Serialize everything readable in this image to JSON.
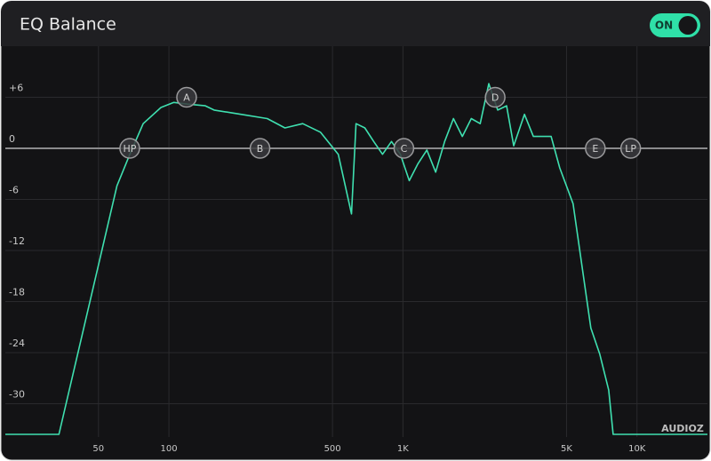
{
  "header": {
    "title": "EQ Balance",
    "toggle": "ON"
  },
  "watermark": "AUDIOZ",
  "chart_data": {
    "type": "line",
    "x_scale": "log",
    "xlim": [
      20,
      20000
    ],
    "ylim": [
      -36,
      12
    ],
    "xticks": [
      50,
      100,
      500,
      {
        "value": 1000,
        "label": "1K"
      },
      {
        "value": 5000,
        "label": "5K"
      },
      {
        "value": 10000,
        "label": "10K"
      }
    ],
    "yticks": [
      {
        "value": 6,
        "label": "+6"
      },
      0,
      -6,
      -12,
      -18,
      -24,
      -30
    ],
    "grid": true,
    "series": [
      {
        "color": "#3fe0b0",
        "x": [
          20,
          33.9,
          60,
          68.1,
          77.6,
          92.5,
          105,
          120,
          143,
          156,
          203,
          263,
          313,
          373,
          444,
          529,
          603,
          630,
          687,
          750,
          818,
          893,
          975,
          1064,
          1159,
          1265,
          1380,
          1507,
          1644,
          1794,
          1959,
          2138,
          2328,
          2541,
          2773,
          2972,
          3304,
          3606,
          4295,
          4677,
          5333,
          5821,
          6353,
          6934,
          7568,
          7907,
          20000
        ],
        "values": [
          -33.6,
          -33.6,
          -4.4,
          -0.7,
          2.9,
          4.8,
          5.4,
          5.2,
          5.0,
          4.5,
          4.0,
          3.5,
          2.4,
          2.9,
          1.9,
          -0.7,
          -7.7,
          2.9,
          2.4,
          0.8,
          -0.7,
          0.8,
          -0.7,
          -3.8,
          -1.8,
          -0.2,
          -2.8,
          0.8,
          3.5,
          1.4,
          3.5,
          2.9,
          7.6,
          4.5,
          5.0,
          0.3,
          4.0,
          1.4,
          1.4,
          -2.3,
          -6.5,
          -13.8,
          -21.1,
          -24.2,
          -28.4,
          -33.6,
          -33.6
        ]
      }
    ],
    "bands": [
      {
        "label": "HP",
        "freq": 68,
        "gain": 0
      },
      {
        "label": "A",
        "freq": 119,
        "gain": 6
      },
      {
        "label": "B",
        "freq": 245,
        "gain": 0
      },
      {
        "label": "C",
        "freq": 1009,
        "gain": 0
      },
      {
        "label": "D",
        "freq": 2477,
        "gain": 6
      },
      {
        "label": "E",
        "freq": 6637,
        "gain": 0
      },
      {
        "label": "LP",
        "freq": 9400,
        "gain": 0
      }
    ]
  }
}
